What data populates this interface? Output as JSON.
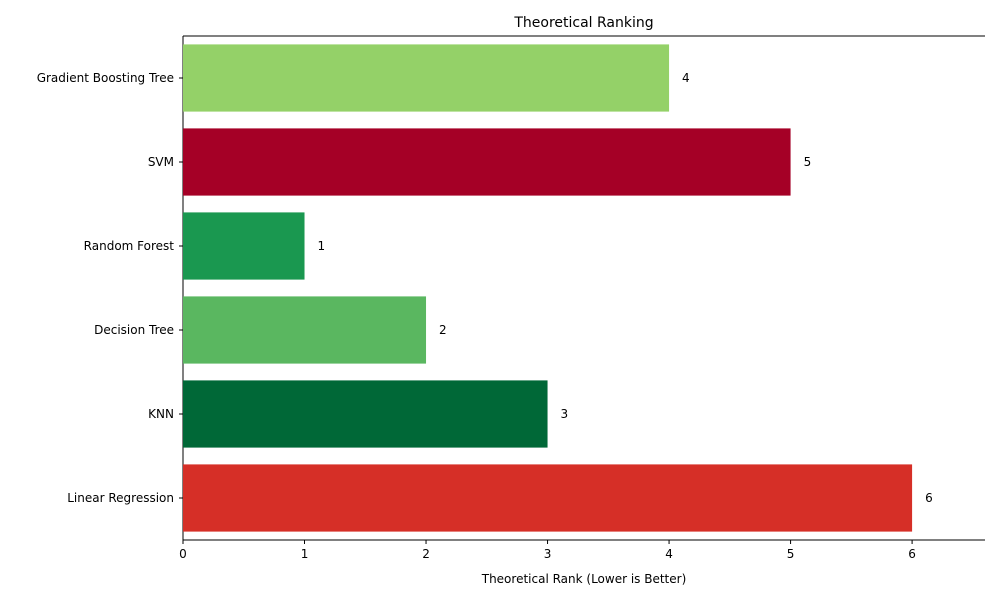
{
  "chart_data": {
    "type": "bar",
    "orientation": "horizontal",
    "title": "Theoretical Ranking",
    "xlabel": "Theoretical Rank (Lower is Better)",
    "ylabel": "",
    "xlim": [
      0,
      6.6
    ],
    "xticks": [
      0,
      1,
      2,
      3,
      4,
      5,
      6
    ],
    "grid": false,
    "categories": [
      "Gradient Boosting Tree",
      "SVM",
      "Random Forest",
      "Decision Tree",
      "KNN",
      "Linear Regression"
    ],
    "values": [
      4,
      5,
      1,
      2,
      3,
      6
    ],
    "data_labels": [
      "4",
      "5",
      "1",
      "2",
      "3",
      "6"
    ],
    "colors": [
      "#94d168",
      "#a50026",
      "#1a9850",
      "#5ab760",
      "#006837",
      "#d62f27"
    ]
  }
}
